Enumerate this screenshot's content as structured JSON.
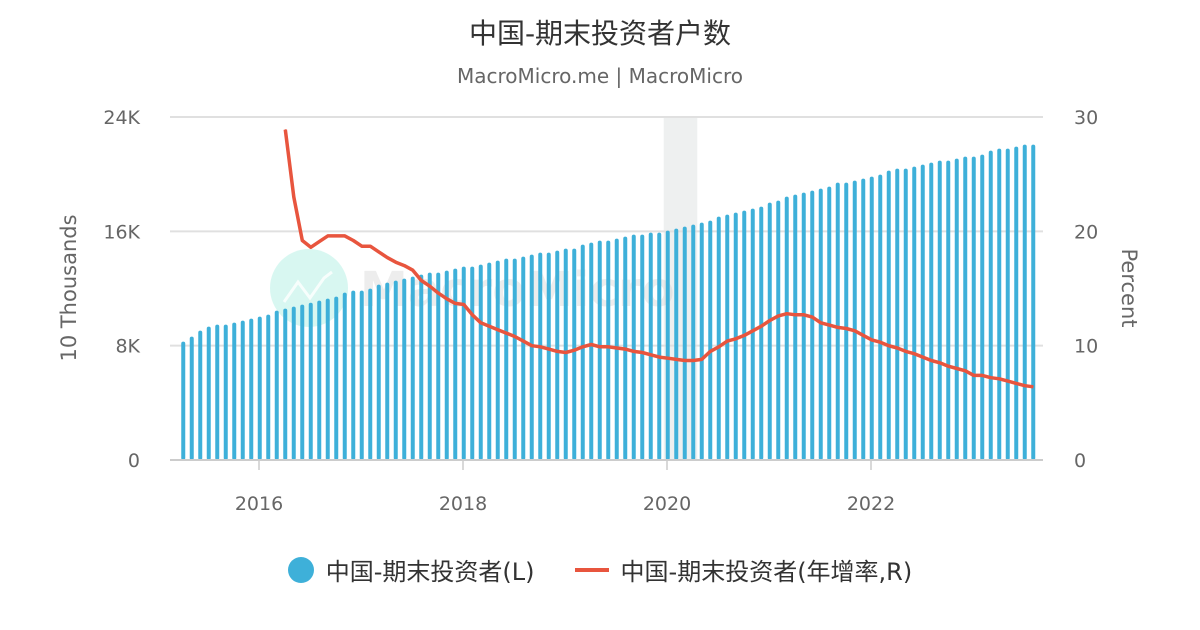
{
  "chart_data": {
    "type": "bar+line",
    "title": "中国-期末投资者户数",
    "subtitle": "MacroMicro.me | MacroMicro",
    "watermark": "MacroMicro",
    "x_start": "2015-04",
    "x_end": "2023-08",
    "frequency": "monthly",
    "x_ticks": [
      "2016",
      "2018",
      "2020",
      "2022"
    ],
    "y_left": {
      "label": "10 Thousands",
      "range": [
        0,
        24000
      ],
      "ticks": [
        0,
        8000,
        16000,
        24000
      ],
      "tick_labels": [
        "0",
        "8K",
        "16K",
        "24K"
      ]
    },
    "y_right": {
      "label": "Percent",
      "range": [
        0,
        30
      ],
      "ticks": [
        0,
        10,
        20,
        30
      ],
      "tick_labels": [
        "0",
        "10",
        "20",
        "30"
      ]
    },
    "grid": true,
    "legend_position": "bottom",
    "shaded_period": [
      "2020-01",
      "2020-04"
    ],
    "series": [
      {
        "name": "中国-期末投资者(L)",
        "type": "bar",
        "axis": "left",
        "color": "#3eb0d9",
        "start": "2015-04",
        "values": [
          8280,
          8630,
          9050,
          9330,
          9470,
          9470,
          9610,
          9750,
          9890,
          10030,
          10170,
          10450,
          10590,
          10730,
          10870,
          11000,
          11150,
          11290,
          11430,
          11710,
          11850,
          11850,
          11990,
          12270,
          12410,
          12550,
          12690,
          12830,
          12970,
          13110,
          13110,
          13250,
          13390,
          13530,
          13530,
          13670,
          13810,
          13950,
          14090,
          14090,
          14230,
          14370,
          14510,
          14510,
          14650,
          14790,
          14790,
          15070,
          15210,
          15350,
          15350,
          15490,
          15630,
          15770,
          15770,
          15910,
          15910,
          16050,
          16190,
          16330,
          16470,
          16610,
          16750,
          17030,
          17170,
          17310,
          17450,
          17590,
          17730,
          18010,
          18150,
          18430,
          18570,
          18710,
          18850,
          18990,
          19130,
          19410,
          19410,
          19550,
          19690,
          19830,
          19970,
          20250,
          20390,
          20390,
          20530,
          20670,
          20810,
          20950,
          20950,
          21090,
          21230,
          21230,
          21370,
          21650,
          21790,
          21790,
          21930,
          22070,
          22070
        ]
      },
      {
        "name": "中国-期末投资者(年增率,R)",
        "type": "line",
        "axis": "right",
        "color": "#e8553e",
        "start": "2016-04",
        "values": [
          28.9,
          23.0,
          19.2,
          18.6,
          19.1,
          19.6,
          19.6,
          19.6,
          19.2,
          18.7,
          18.7,
          18.2,
          17.7,
          17.3,
          17.0,
          16.6,
          15.7,
          15.2,
          14.6,
          14.1,
          13.7,
          13.6,
          12.7,
          12.0,
          11.7,
          11.4,
          11.1,
          10.8,
          10.4,
          10.0,
          9.9,
          9.7,
          9.5,
          9.4,
          9.6,
          9.9,
          10.1,
          9.9,
          9.9,
          9.8,
          9.7,
          9.5,
          9.4,
          9.2,
          9.0,
          8.9,
          8.8,
          8.7,
          8.7,
          8.8,
          9.5,
          9.9,
          10.4,
          10.6,
          10.9,
          11.3,
          11.7,
          12.2,
          12.6,
          12.8,
          12.7,
          12.7,
          12.5,
          12.0,
          11.8,
          11.6,
          11.5,
          11.3,
          10.9,
          10.5,
          10.3,
          10.0,
          9.8,
          9.5,
          9.3,
          9.0,
          8.7,
          8.5,
          8.2,
          8.0,
          7.8,
          7.4,
          7.4,
          7.2,
          7.1,
          6.9,
          6.7,
          6.5,
          6.4
        ]
      }
    ]
  }
}
